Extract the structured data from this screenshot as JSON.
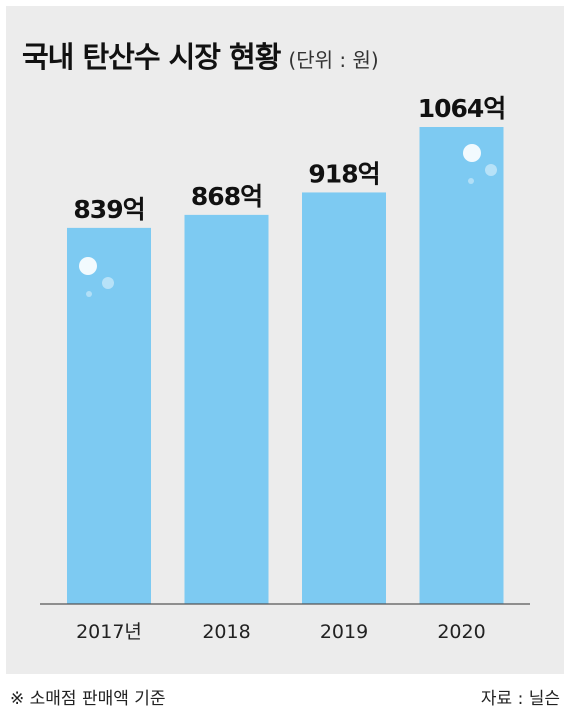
{
  "title": "국내 탄산수 시장 현황",
  "unit": "(단위 : 원)",
  "colors": {
    "bar": "#7dcaf2",
    "background": "#ececec",
    "bubble": "#ffffff"
  },
  "chart_data": {
    "type": "bar",
    "categories": [
      "2017년",
      "2018",
      "2019",
      "2020"
    ],
    "values": [
      839,
      868,
      918,
      1064
    ],
    "data_labels": [
      "839억",
      "868억",
      "918억",
      "1064억"
    ],
    "title": "국내 탄산수 시장 현황",
    "xlabel": "",
    "ylabel": "",
    "ylim": [
      0,
      1064
    ],
    "grid": false,
    "legend": "none"
  },
  "footer": {
    "note": "※ 소매점 판매액 기준",
    "source": "자료 : 닐슨"
  }
}
